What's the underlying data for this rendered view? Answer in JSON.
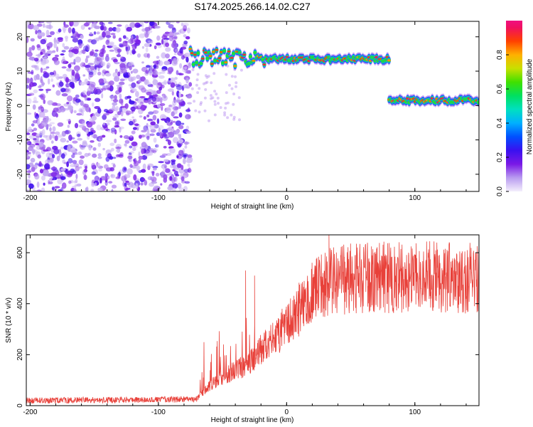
{
  "title": "S174.2025.266.14.02.C27",
  "chart_data": [
    {
      "type": "heatmap",
      "name": "spectrogram",
      "xlabel": "Height of straight line (km)",
      "ylabel": "Frequency (Hz)",
      "xlim": [
        -203,
        150
      ],
      "ylim": [
        -25,
        24.5
      ],
      "xticks": [
        -200,
        -100,
        0,
        100
      ],
      "yticks": [
        -20,
        -10,
        0,
        10,
        20
      ],
      "noise_region_km": [
        -203,
        -75
      ],
      "band_segments": [
        {
          "x_start": -75,
          "x_end": -15,
          "freq_hz": 14
        },
        {
          "x_start": -15,
          "x_end": 80,
          "freq_hz": 13.5
        },
        {
          "x_start": 80,
          "x_end": 150,
          "freq_hz": 1.5
        }
      ],
      "colorbar": {
        "label": "Normalized spectral amplitude",
        "range": [
          0,
          1
        ],
        "ticks": [
          0.0,
          0.2,
          0.4,
          0.6,
          0.8
        ],
        "tick_labels": [
          "0.0",
          "0.2",
          "0.4",
          "0.6",
          "0.8"
        ]
      }
    },
    {
      "type": "line",
      "name": "snr",
      "xlabel": "Height of straight line (km)",
      "ylabel": "SNR (10 * v/v)",
      "xlim": [
        -203,
        150
      ],
      "ylim": [
        0,
        670
      ],
      "xticks": [
        -200,
        -100,
        0,
        100
      ],
      "yticks": [
        0,
        200,
        400,
        600
      ],
      "series_color": "#e8413a",
      "trend": [
        {
          "x": -203,
          "y": 20
        },
        {
          "x": -70,
          "y": 25
        },
        {
          "x": -60,
          "y": 80
        },
        {
          "x": -40,
          "y": 140
        },
        {
          "x": -30,
          "y": 160
        },
        {
          "x": -20,
          "y": 220
        },
        {
          "x": -10,
          "y": 260
        },
        {
          "x": 0,
          "y": 320
        },
        {
          "x": 10,
          "y": 380
        },
        {
          "x": 20,
          "y": 440
        },
        {
          "x": 30,
          "y": 480
        },
        {
          "x": 50,
          "y": 500
        },
        {
          "x": 100,
          "y": 505
        },
        {
          "x": 150,
          "y": 500
        }
      ],
      "spikes": [
        {
          "x": -32,
          "y": 530
        },
        {
          "x": -25,
          "y": 510
        },
        {
          "x": 33,
          "y": 670
        }
      ]
    }
  ]
}
